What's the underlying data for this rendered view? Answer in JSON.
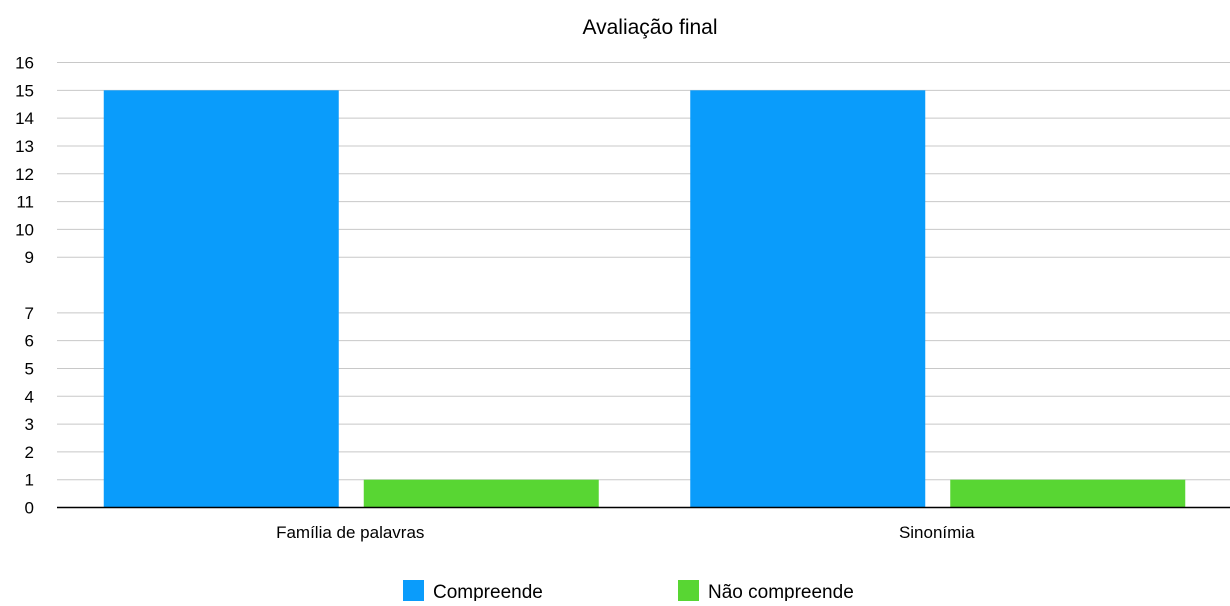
{
  "chart_data": {
    "type": "bar",
    "title": "Avaliação final",
    "xlabel": "",
    "ylabel": "",
    "ylim": [
      0,
      16
    ],
    "yticks": [
      0,
      1,
      2,
      3,
      4,
      5,
      6,
      7,
      9,
      10,
      11,
      12,
      13,
      14,
      15,
      16
    ],
    "grid": true,
    "legend_position": "bottom",
    "categories": [
      "Família de palavras",
      "Sinonímia"
    ],
    "series": [
      {
        "name": "Compreende",
        "color": "#0a9cfb",
        "values": [
          15,
          15
        ]
      },
      {
        "name": "Não compreende",
        "color": "#58d633",
        "values": [
          1,
          1
        ]
      }
    ]
  }
}
